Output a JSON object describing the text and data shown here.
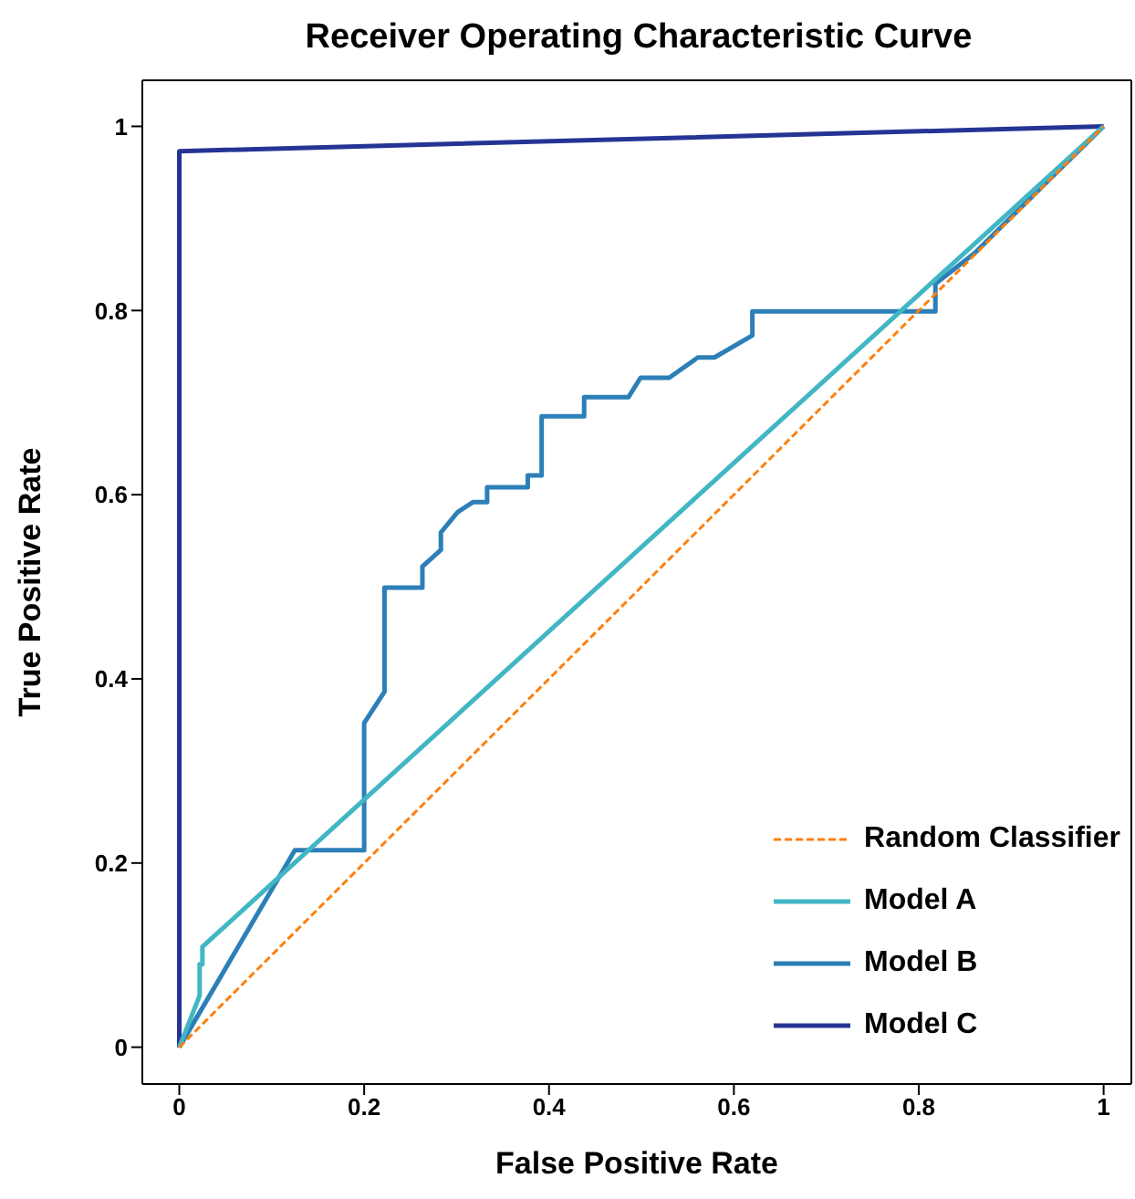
{
  "chart_data": {
    "type": "line",
    "title": "Receiver Operating Characteristic Curve",
    "xlabel": "False Positive Rate",
    "ylabel": "True Positive Rate",
    "xlim": [
      -0.04,
      1.03
    ],
    "ylim": [
      -0.04,
      1.05
    ],
    "xticks": [
      0,
      0.2,
      0.4,
      0.6,
      0.8,
      1
    ],
    "yticks": [
      0,
      0.2,
      0.4,
      0.6,
      0.8,
      1
    ],
    "grid": false,
    "legend": "bottom right",
    "marker": "none",
    "series": [
      {
        "name": "Random Classifier",
        "color": "#ff7f0e",
        "line_style": "dashed",
        "x": [
          0,
          1
        ],
        "values": [
          0,
          1
        ]
      },
      {
        "name": "Model A",
        "color": "#41b6c4",
        "line_style": "solid",
        "x": [
          0,
          0.022,
          0.022,
          0.025,
          0.025,
          1
        ],
        "values": [
          0,
          0.056,
          0.09,
          0.09,
          0.109,
          1
        ]
      },
      {
        "name": "Model B",
        "color": "#2c7fb8",
        "line_style": "solid",
        "x": [
          0,
          0.125,
          0.2,
          0.2,
          0.222,
          0.222,
          0.263,
          0.263,
          0.283,
          0.283,
          0.301,
          0.318,
          0.333,
          0.333,
          0.377,
          0.377,
          0.392,
          0.392,
          0.438,
          0.438,
          0.486,
          0.499,
          0.53,
          0.561,
          0.579,
          0.62,
          0.62,
          0.818,
          0.818,
          0.86,
          1
        ],
        "values": [
          0,
          0.214,
          0.214,
          0.352,
          0.386,
          0.499,
          0.499,
          0.522,
          0.54,
          0.559,
          0.581,
          0.592,
          0.592,
          0.608,
          0.608,
          0.621,
          0.621,
          0.685,
          0.685,
          0.706,
          0.706,
          0.727,
          0.727,
          0.749,
          0.749,
          0.773,
          0.799,
          0.799,
          0.829,
          0.862,
          1
        ]
      },
      {
        "name": "Model C",
        "color": "#253494",
        "line_style": "solid",
        "x": [
          0,
          0,
          1
        ],
        "values": [
          0,
          0.973,
          1
        ]
      }
    ]
  }
}
